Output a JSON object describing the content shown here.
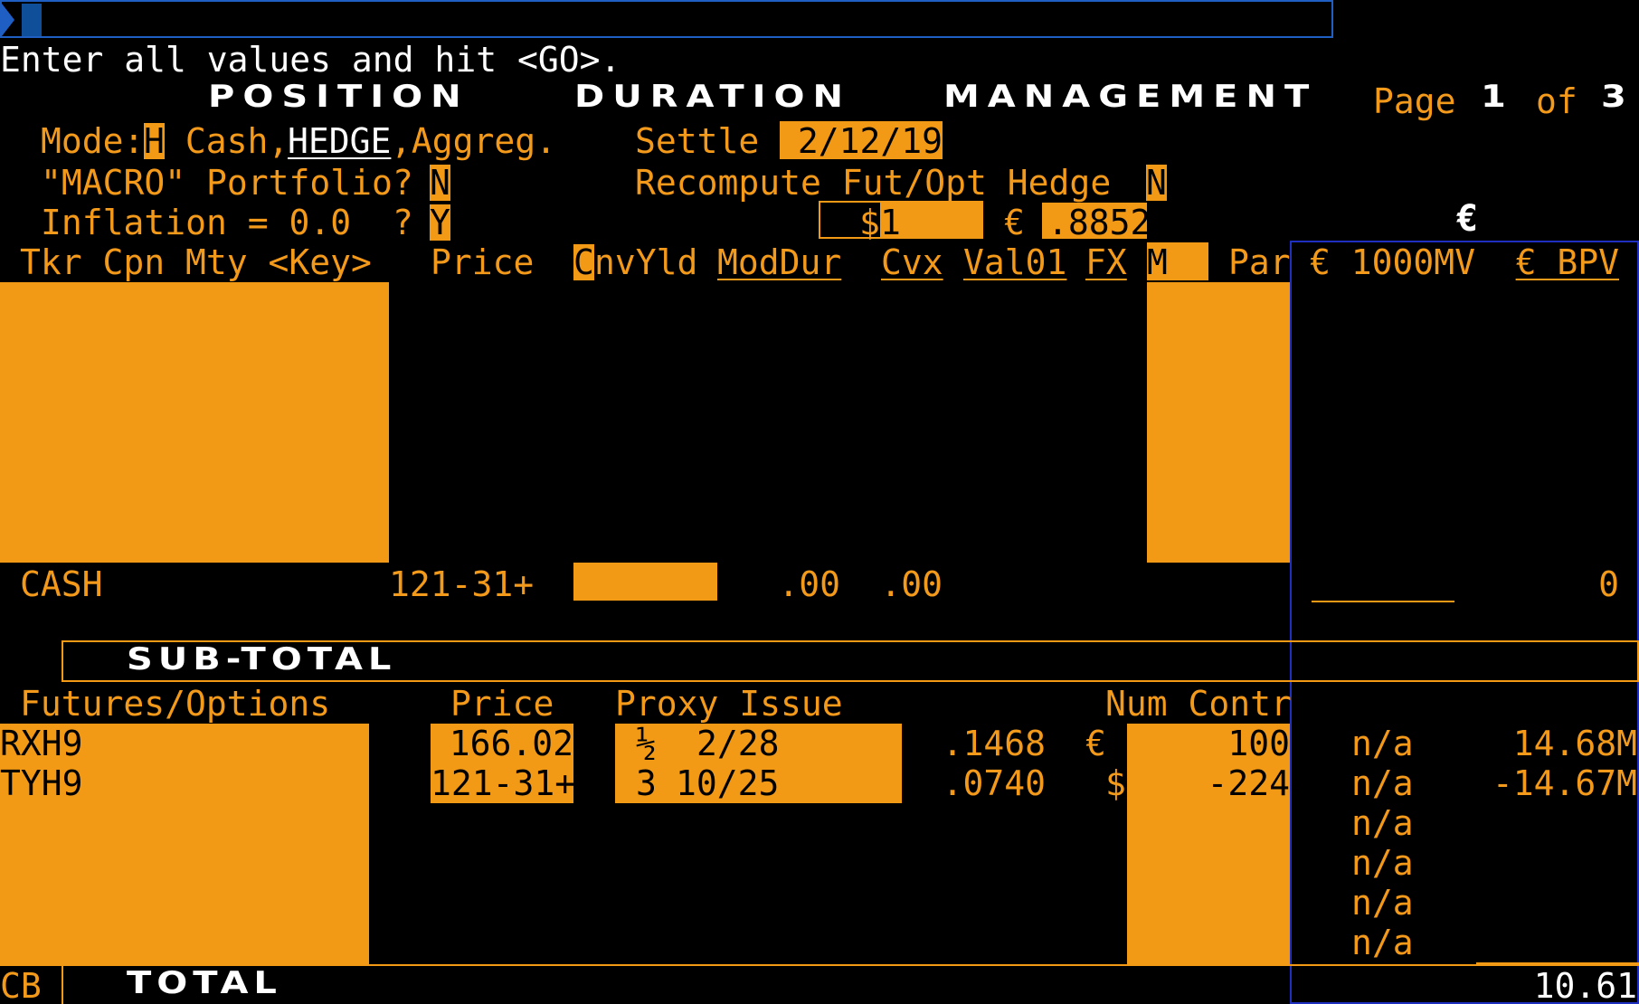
{
  "command_line": {
    "value": ""
  },
  "prompt": "Enter all values and hit <GO>.",
  "header": {
    "title_words": [
      "POSITION",
      "DURATION",
      "MANAGEMENT"
    ],
    "page_label": "Page",
    "page_num": "1",
    "page_of": "of",
    "page_total": "3"
  },
  "mode": {
    "label": "Mode:",
    "value": "H",
    "opt_cash": " Cash,",
    "opt_hedge": "HEDGE",
    "opt_aggreg": ",Aggreg."
  },
  "settle": {
    "label": "Settle",
    "value": "2/12/19"
  },
  "macro": {
    "label": "\"MACRO\" Portfolio?",
    "value": "N"
  },
  "recompute": {
    "label": "Recompute Fut/Opt Hedge",
    "value": "N"
  },
  "inflation": {
    "label": "Inflation = 0.0  ?",
    "value": "Y"
  },
  "fx": {
    "usd_label": "$",
    "usd_value": "1",
    "eur_label": "€",
    "eur_value": ".8852",
    "currency_symbol": "€"
  },
  "columns": {
    "tkr": "Tkr Cpn Mty <Key>",
    "price": "Price",
    "cnvyld_first": "C",
    "cnvyld_rest": "nvYld",
    "moddur": "ModDur",
    "cvx": "Cvx",
    "val01": "Val01",
    "fx": "FX",
    "m": "M",
    "par": "Par",
    "mv": "€ 1000MV",
    "bpv": "€ BPV"
  },
  "cash_row": {
    "label": "CASH",
    "price": "121-31+",
    "moddur": ".00",
    "cvx": ".00",
    "bpv": "0"
  },
  "subtotal_label": "SUB-TOTAL",
  "futures": {
    "header": "Futures/Options",
    "price_label": "Price",
    "proxy_label": "Proxy Issue",
    "num_label": "Num Contr",
    "rows": [
      {
        "ticker": "RXH9",
        "price": "166.02",
        "proxy_cpn": "½",
        "proxy_mty": "2/28",
        "ratio": ".1468",
        "ccy": "€",
        "num": "100",
        "mv": "n/a",
        "bpv": "14.68M"
      },
      {
        "ticker": "TYH9",
        "price": "121-31+",
        "proxy_cpn": "3",
        "proxy_mty": "10/25",
        "ratio": ".0740",
        "ccy": "$",
        "num": "-224",
        "mv": "n/a",
        "bpv": "-14.67M"
      }
    ],
    "extra_na": [
      "n/a",
      "n/a",
      "n/a",
      "n/a"
    ]
  },
  "total": {
    "cb": "CB",
    "label": "TOTAL",
    "value": "10.61"
  }
}
